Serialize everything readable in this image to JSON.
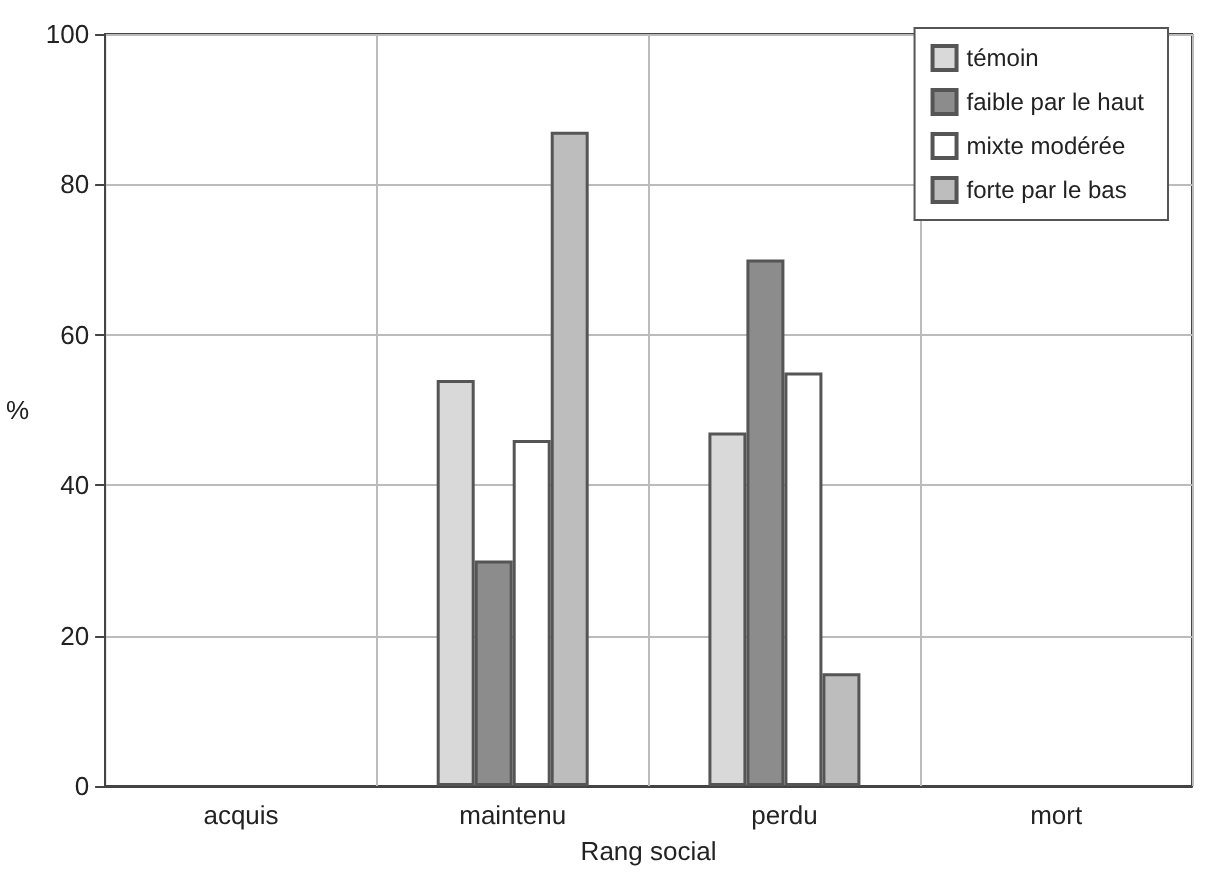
{
  "chart_data": {
    "type": "bar",
    "xlabel": "Rang social",
    "ylabel": "%",
    "categories": [
      "acquis",
      "maintenu",
      "perdu",
      "mort"
    ],
    "series": [
      {
        "name": "témoin",
        "color": "#d9d9d9",
        "values": [
          null,
          54,
          47,
          null
        ]
      },
      {
        "name": "faible par le haut",
        "color": "#8c8c8c",
        "values": [
          null,
          30,
          70,
          null
        ]
      },
      {
        "name": "mixte modérée",
        "color": "#ffffff",
        "values": [
          null,
          46,
          55,
          null
        ]
      },
      {
        "name": "forte par le bas",
        "color": "#bdbdbd",
        "values": [
          null,
          87,
          15,
          null
        ]
      }
    ],
    "ylim": [
      0,
      100
    ],
    "yticks": [
      0,
      20,
      40,
      60,
      80,
      100
    ],
    "grid": true,
    "legend": "top right"
  }
}
